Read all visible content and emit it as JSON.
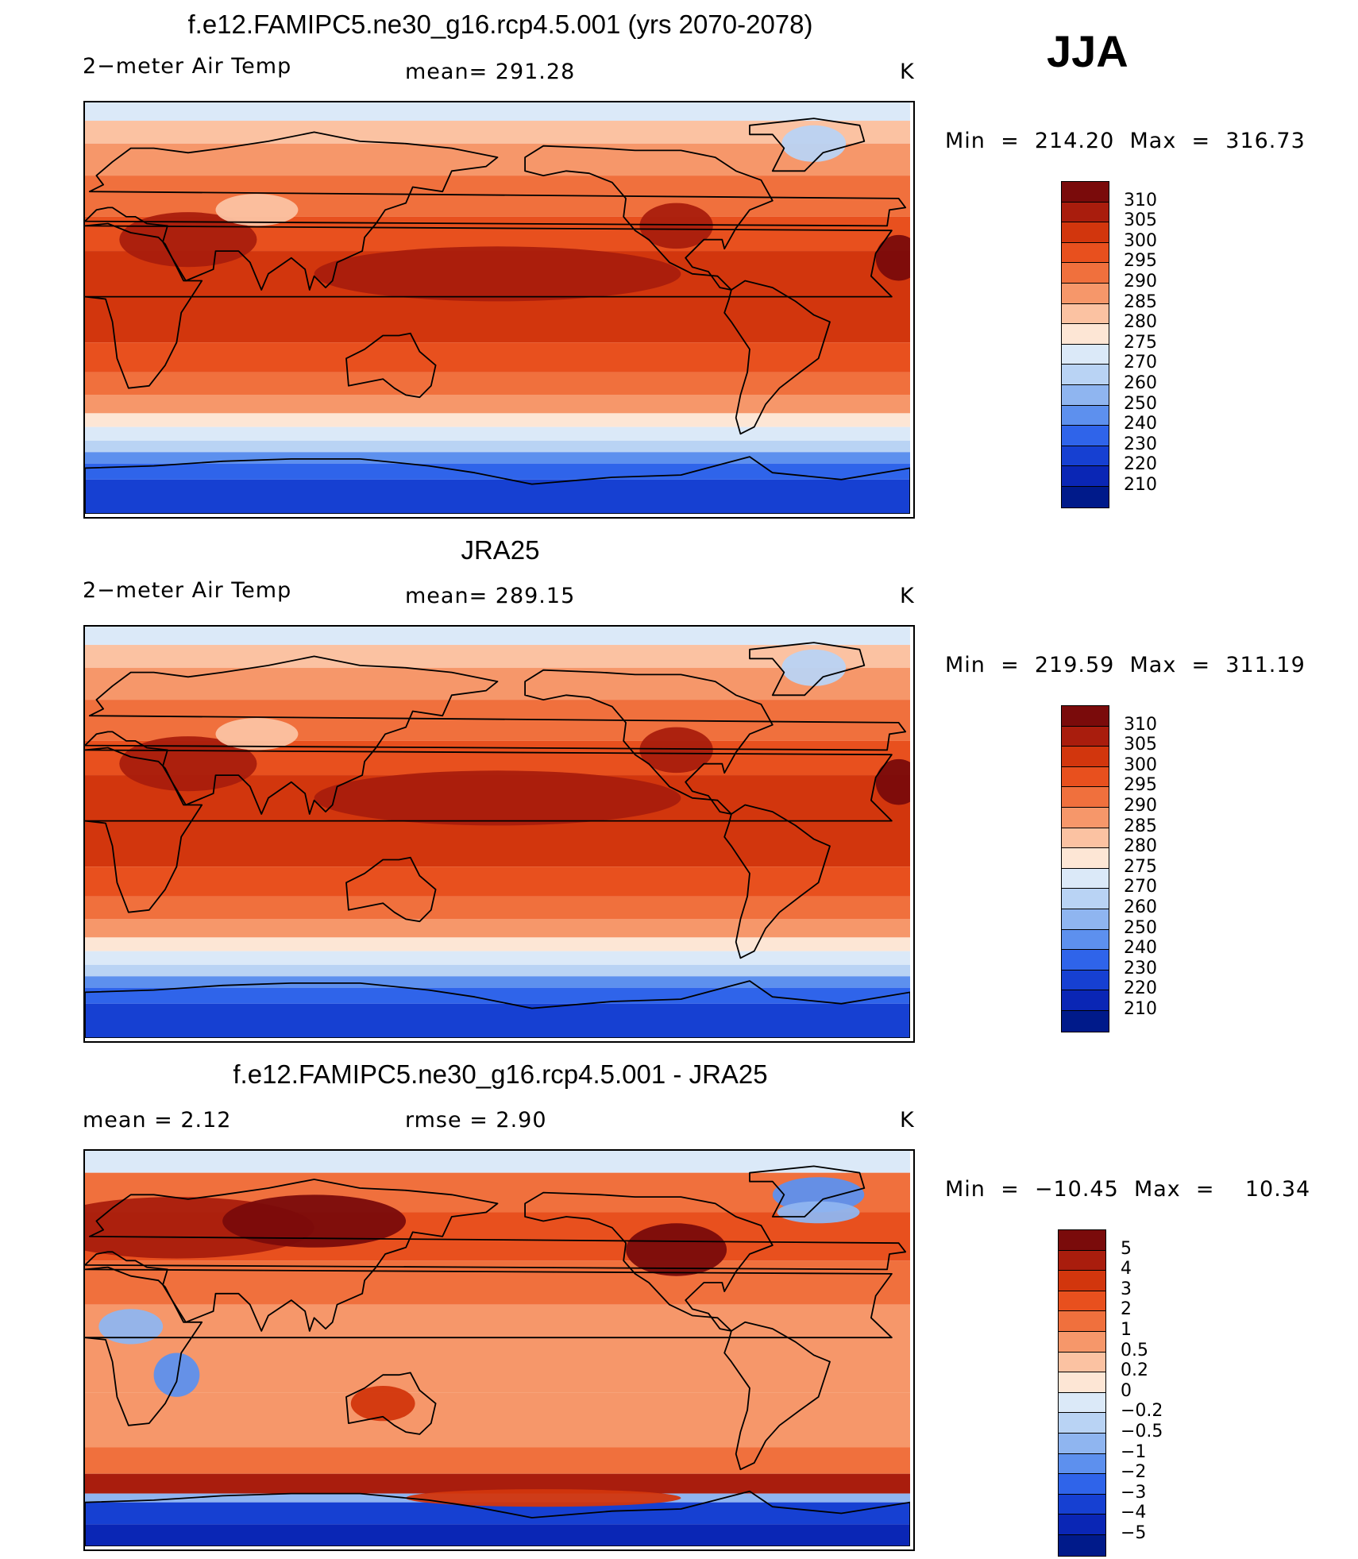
{
  "season": "JJA",
  "panels": [
    {
      "title": "f.e12.FAMIPC5.ne30_g16.rcp4.5.001 (yrs 2070-2078)",
      "left_label": "2−meter Air Temp",
      "center_label": "mean=  291.28",
      "units": "K",
      "minmax": "Min  =  214.20  Max  =  316.73",
      "scale": "abs"
    },
    {
      "title": "JRA25",
      "left_label": "2−meter Air Temp",
      "center_label": "mean=  289.15",
      "units": "K",
      "minmax": "Min  =  219.59  Max  =  311.19",
      "scale": "abs"
    },
    {
      "title": "f.e12.FAMIPC5.ne30_g16.rcp4.5.001 - JRA25",
      "left_label": "mean  =     2.12",
      "center_label": "rmse  =     2.90",
      "units": "K",
      "minmax": "Min  =  −10.45  Max  =    10.34",
      "scale": "diff"
    }
  ],
  "colorbars": {
    "abs": {
      "labels": [
        "310",
        "305",
        "300",
        "295",
        "290",
        "285",
        "280",
        "275",
        "270",
        "260",
        "250",
        "240",
        "230",
        "220",
        "210"
      ],
      "colors": [
        "#7a0b0b",
        "#a91d0d",
        "#d2360d",
        "#e8501e",
        "#f0703d",
        "#f6976a",
        "#fbc2a2",
        "#fde6d5",
        "#dbe9f8",
        "#b9d3f4",
        "#8fb5f0",
        "#5d90ee",
        "#2f64ea",
        "#1640d2",
        "#0a26b5",
        "#001a8a"
      ]
    },
    "diff": {
      "labels": [
        "5",
        "4",
        "3",
        "2",
        "1",
        "0.5",
        "0.2",
        "0",
        "−0.2",
        "−0.5",
        "−1",
        "−2",
        "−3",
        "−4",
        "−5"
      ],
      "colors": [
        "#7a0b0b",
        "#a91d0d",
        "#d2360d",
        "#e8501e",
        "#f0703d",
        "#f6976a",
        "#fbc2a2",
        "#fde6d5",
        "#dbe9f8",
        "#b9d3f4",
        "#8fb5f0",
        "#5d90ee",
        "#2f64ea",
        "#1640d2",
        "#0a26b5",
        "#001a8a"
      ]
    }
  }
}
